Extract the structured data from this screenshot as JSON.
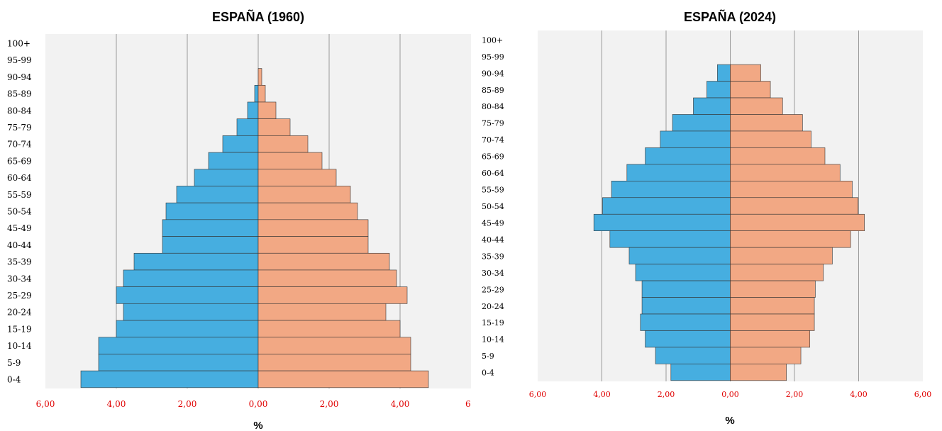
{
  "colors": {
    "male": "#46aee0",
    "female": "#f2a884",
    "plot_bg": "#f2f2f2",
    "grid": "#999999",
    "tick_text": "#e00000"
  },
  "chart_data": [
    {
      "type": "bar",
      "title": "ESPAÑA (1960)",
      "xlabel": "%",
      "categories": [
        "100+",
        "95-99",
        "90-94",
        "85-89",
        "80-84",
        "75-79",
        "70-74",
        "65-69",
        "60-64",
        "55-59",
        "50-54",
        "45-49",
        "40-44",
        "35-39",
        "30-34",
        "25-29",
        "20-24",
        "15-19",
        "10-14",
        "5-9",
        "0-4"
      ],
      "series": [
        {
          "values": [
            0,
            0,
            0,
            0.1,
            0.3,
            0.6,
            1.0,
            1.4,
            1.8,
            2.3,
            2.6,
            2.7,
            2.7,
            3.5,
            3.8,
            4.0,
            3.8,
            4.0,
            4.5,
            4.5,
            5.0
          ]
        },
        {
          "values": [
            0,
            0,
            0.1,
            0.2,
            0.5,
            0.9,
            1.4,
            1.8,
            2.2,
            2.6,
            2.8,
            3.1,
            3.1,
            3.7,
            3.9,
            4.2,
            3.6,
            4.0,
            4.3,
            4.3,
            4.8
          ]
        }
      ],
      "xlim": [
        -6,
        6
      ],
      "x_tick_labels": [
        "6,00",
        "4,00",
        "2,00",
        "0,00",
        "2,00",
        "4,00",
        "6,"
      ],
      "grid": true
    },
    {
      "type": "bar",
      "title": "ESPAÑA (2024)",
      "xlabel": "%",
      "categories": [
        "100+",
        "95-99",
        "90-94",
        "85-89",
        "80-84",
        "75-79",
        "70-74",
        "65-69",
        "60-64",
        "55-59",
        "50-54",
        "45-49",
        "40-44",
        "35-39",
        "30-34",
        "25-29",
        "20-24",
        "15-19",
        "10-14",
        "5-9",
        "0-4"
      ],
      "series": [
        {
          "values": [
            0,
            0,
            0.4,
            0.73,
            1.15,
            1.8,
            2.18,
            2.65,
            3.22,
            3.7,
            3.98,
            4.25,
            3.75,
            3.15,
            2.95,
            2.75,
            2.75,
            2.8,
            2.65,
            2.33,
            1.85
          ]
        },
        {
          "values": [
            0,
            0,
            0.95,
            1.25,
            1.63,
            2.25,
            2.52,
            2.95,
            3.42,
            3.8,
            3.98,
            4.18,
            3.75,
            3.18,
            2.9,
            2.65,
            2.62,
            2.62,
            2.48,
            2.2,
            1.75
          ]
        }
      ],
      "xlim": [
        -6,
        6
      ],
      "x_tick_labels": [
        "6,00",
        "4,00",
        "2,00",
        "0,00",
        "2,00",
        "4,00",
        "6,00"
      ],
      "grid": true
    }
  ]
}
